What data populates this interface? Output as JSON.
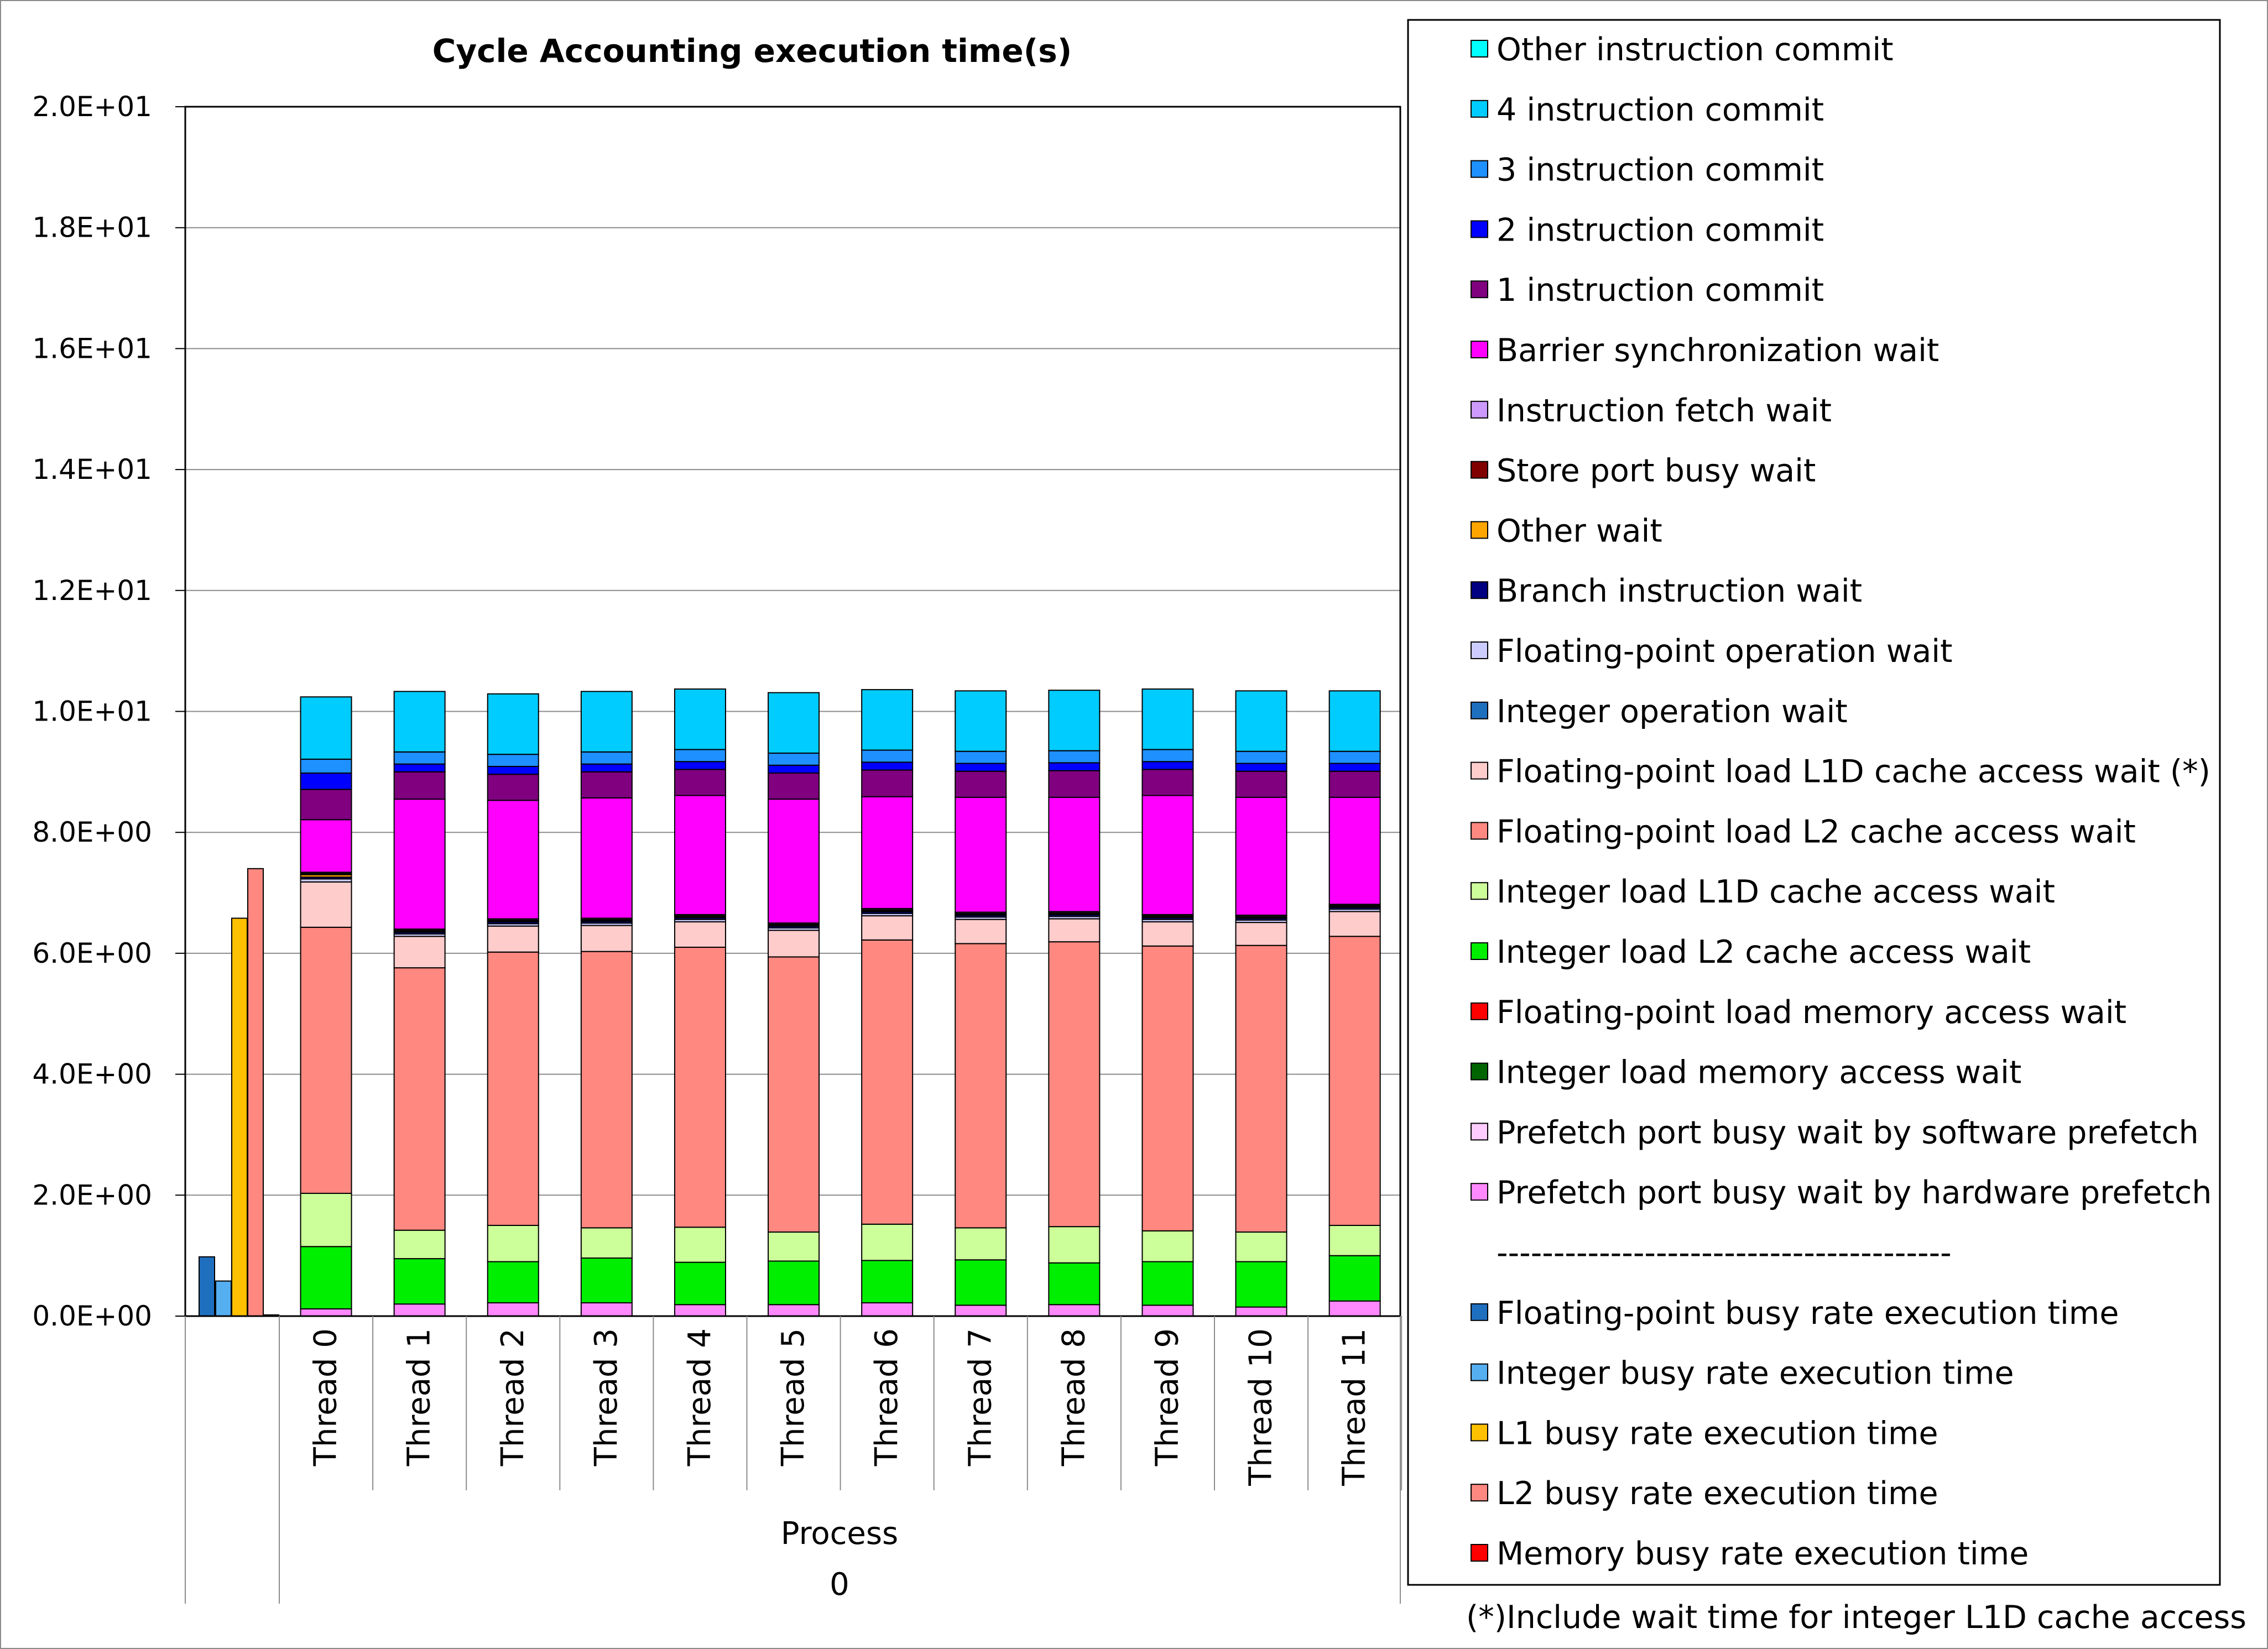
{
  "chart_data": {
    "type": "bar",
    "title": "Cycle Accounting execution time(s)",
    "ylim": [
      0,
      20
    ],
    "y_ticks": [
      "0.0E+00",
      "2.0E+00",
      "4.0E+00",
      "6.0E+00",
      "8.0E+00",
      "1.0E+01",
      "1.2E+01",
      "1.4E+01",
      "1.6E+01",
      "1.8E+01",
      "2.0E+01"
    ],
    "grid": true,
    "legend_position": "right",
    "group_label": "Process",
    "group_value": "0",
    "categories": [
      "Thread 0",
      "Thread 1",
      "Thread 2",
      "Thread 3",
      "Thread 4",
      "Thread 5",
      "Thread 6",
      "Thread 7",
      "Thread 8",
      "Thread 9",
      "Thread 10",
      "Thread 11"
    ],
    "process_busy_rates": {
      "series": [
        {
          "name": "Floating-point busy rate execution time",
          "value": 0.98,
          "color": "#1f6fbf"
        },
        {
          "name": "Integer busy rate execution time",
          "value": 0.58,
          "color": "#55aef0"
        },
        {
          "name": "L1 busy rate execution time",
          "value": 6.58,
          "color": "#ffc000"
        },
        {
          "name": "L2 busy rate execution time",
          "value": 7.4,
          "color": "#ff8880"
        },
        {
          "name": "Memory busy rate execution time",
          "value": 0.02,
          "color": "#ff0000"
        }
      ]
    },
    "stack_series": [
      {
        "name": "Prefetch port busy wait by hardware prefetch",
        "color": "#ff88ff",
        "values": [
          0.12,
          0.2,
          0.22,
          0.22,
          0.19,
          0.19,
          0.22,
          0.18,
          0.19,
          0.18,
          0.15,
          0.25
        ]
      },
      {
        "name": "Prefetch port busy wait by software prefetch",
        "color": "#ffccff",
        "values": [
          0,
          0,
          0,
          0,
          0,
          0,
          0,
          0,
          0,
          0,
          0,
          0
        ]
      },
      {
        "name": "Integer load memory access wait",
        "color": "#006400",
        "values": [
          0,
          0,
          0,
          0,
          0,
          0,
          0,
          0,
          0,
          0,
          0,
          0
        ]
      },
      {
        "name": "Floating-point load memory access wait",
        "color": "#ff0000",
        "values": [
          0,
          0,
          0,
          0,
          0,
          0,
          0,
          0,
          0,
          0,
          0,
          0
        ]
      },
      {
        "name": "Integer load L2 cache access wait",
        "color": "#00ee00",
        "values": [
          1.03,
          0.75,
          0.68,
          0.74,
          0.7,
          0.72,
          0.7,
          0.75,
          0.69,
          0.72,
          0.75,
          0.75
        ]
      },
      {
        "name": "Integer load L1D cache access wait",
        "color": "#ccff99",
        "values": [
          0.88,
          0.47,
          0.6,
          0.5,
          0.58,
          0.48,
          0.6,
          0.53,
          0.6,
          0.51,
          0.49,
          0.5
        ]
      },
      {
        "name": "Floating-point load L2 cache access wait",
        "color": "#ff8880",
        "values": [
          4.4,
          4.34,
          4.52,
          4.57,
          4.63,
          4.55,
          4.7,
          4.7,
          4.71,
          4.71,
          4.74,
          4.78
        ]
      },
      {
        "name": "Floating-point load L1D cache access wait (*)",
        "color": "#ffcccc",
        "values": [
          0.75,
          0.52,
          0.43,
          0.43,
          0.42,
          0.44,
          0.4,
          0.4,
          0.38,
          0.4,
          0.38,
          0.41
        ]
      },
      {
        "name": "Integer operation wait",
        "color": "#1f6fbf",
        "values": [
          0,
          0,
          0,
          0,
          0,
          0,
          0,
          0,
          0,
          0,
          0,
          0
        ]
      },
      {
        "name": "Floating-point operation wait",
        "color": "#ccccff",
        "values": [
          0.05,
          0.04,
          0.04,
          0.04,
          0.04,
          0.04,
          0.04,
          0.04,
          0.04,
          0.04,
          0.04,
          0.04
        ]
      },
      {
        "name": "Branch instruction wait",
        "color": "#000080",
        "values": [
          0.03,
          0.03,
          0.03,
          0.03,
          0.03,
          0.03,
          0.03,
          0.03,
          0.03,
          0.03,
          0.03,
          0.03
        ]
      },
      {
        "name": "Other wait",
        "color": "#ffa500",
        "values": [
          0.04,
          0.01,
          0.01,
          0.01,
          0.01,
          0.01,
          0.01,
          0.01,
          0.01,
          0.01,
          0.01,
          0.01
        ]
      },
      {
        "name": "Store port busy wait",
        "color": "#800000",
        "values": [
          0.02,
          0.02,
          0.02,
          0.02,
          0.02,
          0.02,
          0.02,
          0.02,
          0.02,
          0.02,
          0.02,
          0.02
        ]
      },
      {
        "name": "Instruction fetch wait",
        "color": "#cc99ff",
        "values": [
          0.02,
          0.02,
          0.02,
          0.02,
          0.02,
          0.02,
          0.02,
          0.02,
          0.02,
          0.02,
          0.02,
          0.02
        ]
      },
      {
        "name": "Barrier synchronization wait",
        "color": "#ff00ff",
        "values": [
          0.87,
          2.15,
          1.96,
          1.99,
          1.97,
          2.05,
          1.85,
          1.9,
          1.89,
          1.97,
          1.95,
          1.77
        ]
      },
      {
        "name": "1 instruction commit",
        "color": "#800080",
        "values": [
          0.5,
          0.45,
          0.43,
          0.43,
          0.43,
          0.43,
          0.44,
          0.43,
          0.44,
          0.43,
          0.43,
          0.43
        ]
      },
      {
        "name": "2 instruction commit",
        "color": "#0000ff",
        "values": [
          0.27,
          0.13,
          0.13,
          0.13,
          0.13,
          0.13,
          0.13,
          0.13,
          0.13,
          0.13,
          0.13,
          0.13
        ]
      },
      {
        "name": "3 instruction commit",
        "color": "#1e90ff",
        "values": [
          0.23,
          0.2,
          0.2,
          0.2,
          0.2,
          0.2,
          0.2,
          0.2,
          0.2,
          0.2,
          0.2,
          0.2
        ]
      },
      {
        "name": "4 instruction commit",
        "color": "#00ccff",
        "values": [
          1.03,
          1.0,
          1.0,
          1.0,
          1.0,
          1.0,
          1.0,
          1.0,
          1.0,
          1.0,
          1.0,
          1.0
        ]
      },
      {
        "name": "Other instruction commit",
        "color": "#00ffff",
        "values": [
          0,
          0,
          0,
          0,
          0,
          0,
          0,
          0,
          0,
          0,
          0,
          0
        ]
      }
    ],
    "legend": {
      "entries": [
        {
          "name": "Other instruction commit",
          "color": "#00ffff"
        },
        {
          "name": "4 instruction commit",
          "color": "#00ccff"
        },
        {
          "name": "3 instruction commit",
          "color": "#1e90ff"
        },
        {
          "name": "2 instruction commit",
          "color": "#0000ff"
        },
        {
          "name": "1 instruction commit",
          "color": "#800080"
        },
        {
          "name": "Barrier synchronization wait",
          "color": "#ff00ff"
        },
        {
          "name": "Instruction fetch wait",
          "color": "#cc99ff"
        },
        {
          "name": "Store port busy wait",
          "color": "#800000"
        },
        {
          "name": "Other wait",
          "color": "#ffa500"
        },
        {
          "name": "Branch instruction wait",
          "color": "#000080"
        },
        {
          "name": "Floating-point operation wait",
          "color": "#ccccff"
        },
        {
          "name": "Integer operation wait",
          "color": "#1f6fbf"
        },
        {
          "name": "Floating-point load L1D cache access wait (*)",
          "color": "#ffcccc"
        },
        {
          "name": "Floating-point load L2 cache access wait",
          "color": "#ff8880"
        },
        {
          "name": "Integer load L1D cache access wait",
          "color": "#ccff99"
        },
        {
          "name": "Integer load L2 cache access wait",
          "color": "#00ee00"
        },
        {
          "name": "Floating-point load memory access wait",
          "color": "#ff0000"
        },
        {
          "name": "Integer load memory access wait",
          "color": "#006400"
        },
        {
          "name": "Prefetch port busy wait by software prefetch",
          "color": "#ffccff"
        },
        {
          "name": "Prefetch port busy wait by hardware prefetch",
          "color": "#ff88ff"
        },
        {
          "name": "----------------------------------------",
          "color": null
        },
        {
          "name": "Floating-point busy rate execution time",
          "color": "#1f6fbf"
        },
        {
          "name": "Integer busy rate execution time",
          "color": "#55aef0"
        },
        {
          "name": "L1 busy rate execution time",
          "color": "#ffc000"
        },
        {
          "name": "L2 busy rate execution time",
          "color": "#ff8880"
        },
        {
          "name": "Memory busy rate execution time",
          "color": "#ff0000"
        }
      ]
    },
    "footnote": "(*)Include wait time for integer L1D cache access"
  }
}
